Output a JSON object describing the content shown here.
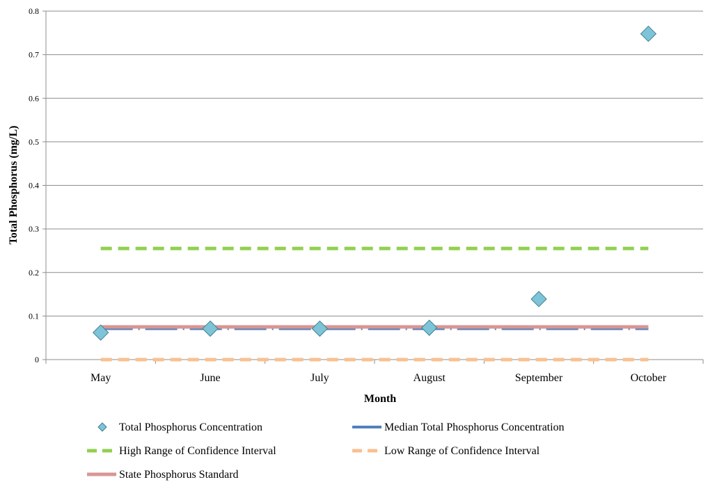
{
  "chart_data": {
    "type": "line",
    "title": "",
    "xlabel": "Month",
    "ylabel": "Total Phosphorus (mg/L)",
    "categories": [
      "May",
      "June",
      "July",
      "August",
      "September",
      "October"
    ],
    "ylim": [
      0,
      0.8
    ],
    "yticks": [
      0,
      0.1,
      0.2,
      0.3,
      0.4,
      0.5,
      0.6,
      0.7,
      0.8
    ],
    "ytick_labels": [
      "0",
      "0.1",
      "0.2",
      "0.3",
      "0.4",
      "0.5",
      "0.6",
      "0.7",
      "0.8"
    ],
    "grid": true,
    "legend_position": "bottom",
    "series": [
      {
        "name": "Total Phosphorus Concentration",
        "kind": "scatter",
        "marker": "diamond",
        "color": "#7ec4d8",
        "values": [
          0.062,
          0.071,
          0.071,
          0.073,
          0.139,
          0.748
        ]
      },
      {
        "name": "Median Total Phosphorus Concentration",
        "kind": "line",
        "style": "dash-dot",
        "color": "#4f81bd",
        "values": [
          0.071,
          0.071,
          0.071,
          0.071,
          0.071,
          0.071
        ]
      },
      {
        "name": "High Range of Confidence Interval",
        "kind": "line",
        "style": "dashed",
        "color": "#92d050",
        "values": [
          0.255,
          0.255,
          0.255,
          0.255,
          0.255,
          0.255
        ]
      },
      {
        "name": "Low Range of Confidence Interval",
        "kind": "line",
        "style": "dashed",
        "color": "#fac090",
        "values": [
          0,
          0,
          0,
          0,
          0,
          0
        ]
      },
      {
        "name": "State Phosphorus Standard",
        "kind": "line",
        "style": "solid",
        "color": "#d99694",
        "values": [
          0.075,
          0.075,
          0.075,
          0.075,
          0.075,
          0.075
        ]
      }
    ]
  }
}
